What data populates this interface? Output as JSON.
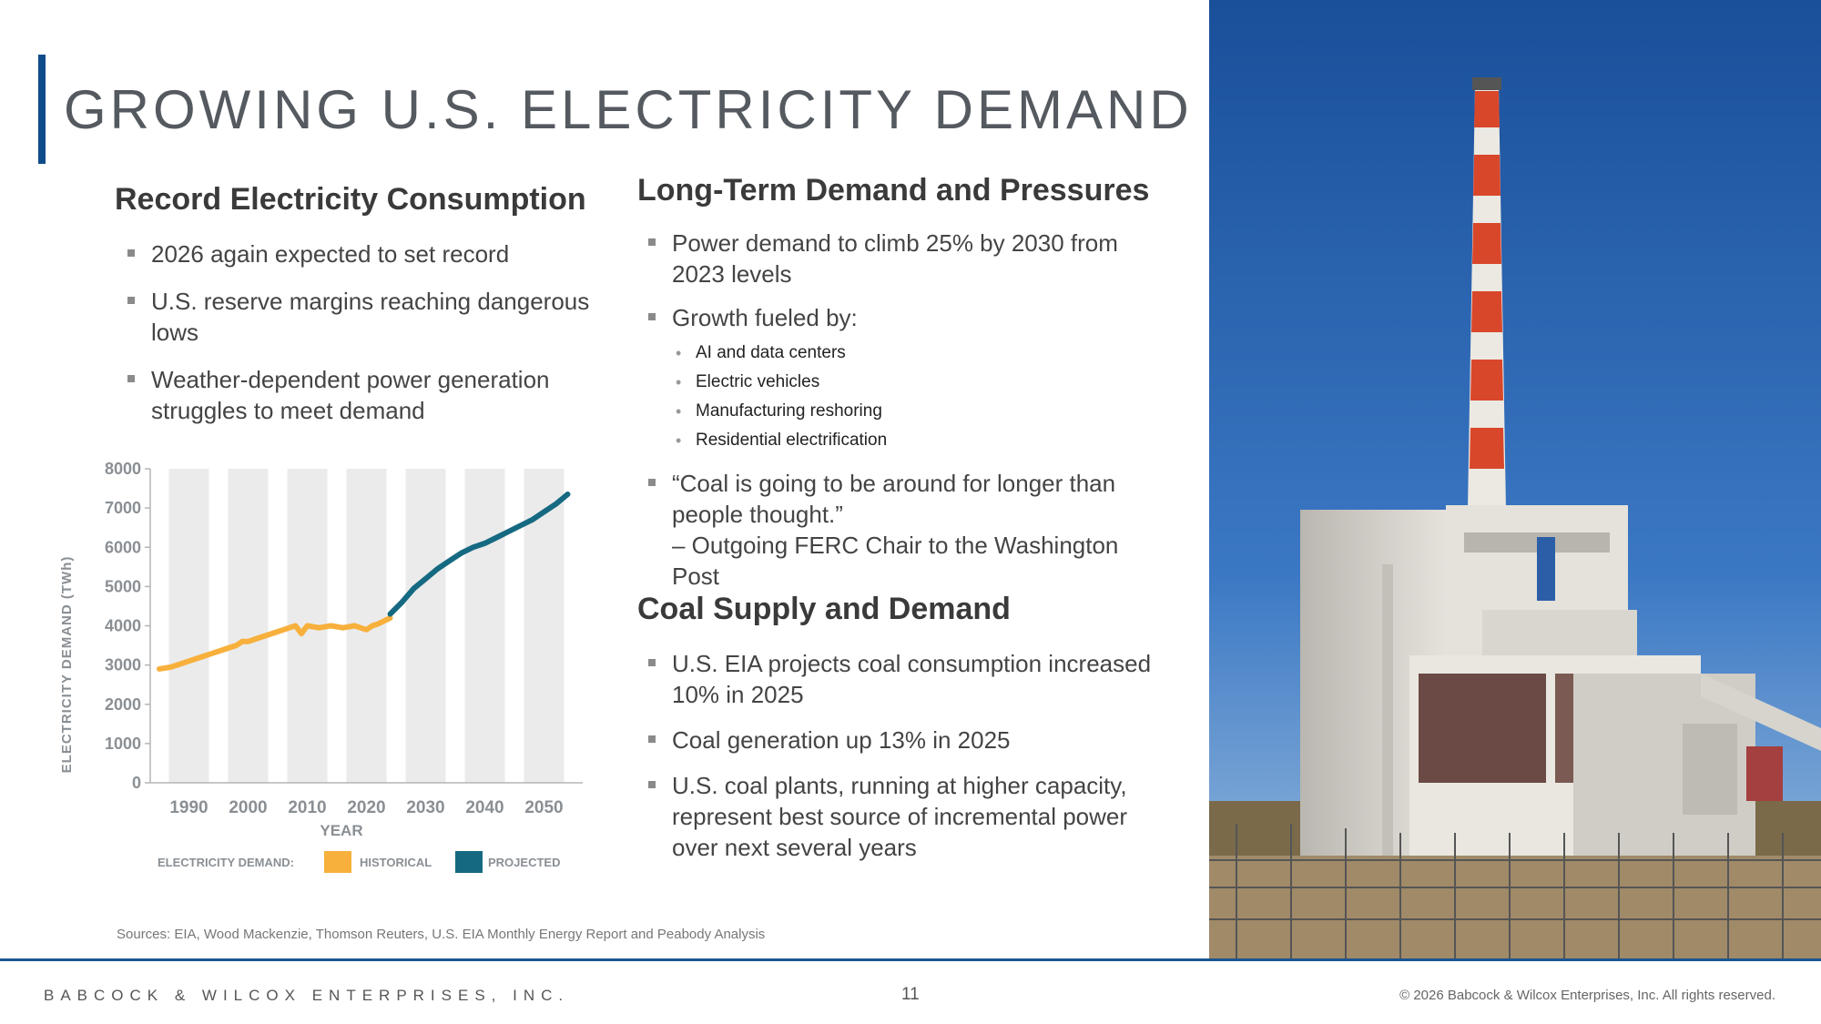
{
  "title": "GROWING U.S. ELECTRICITY DEMAND",
  "left": {
    "heading": "Record Electricity Consumption",
    "bullets": [
      "2026 again expected to set record",
      "U.S. reserve margins reaching dangerous lows",
      "Weather-dependent power generation struggles to meet demand"
    ]
  },
  "right": {
    "heading1": "Long-Term Demand and Pressures",
    "b1": "Power demand to climb 25% by 2030 from 2023 levels",
    "b2": "Growth fueled by:",
    "sub": [
      "AI and data centers",
      "Electric vehicles",
      "Manufacturing reshoring",
      "Residential electrification"
    ],
    "quote": "“Coal is going to be around for longer than people thought.”",
    "quote_attr": "– Outgoing FERC Chair to the Washington Post",
    "heading2": "Coal Supply and Demand",
    "c1": "U.S. EIA projects coal consumption increased 10% in 2025",
    "c2": "Coal generation up 13% in 2025",
    "c3": "U.S. coal plants, running at higher capacity, represent best source of incremental power over next several years"
  },
  "chart_data": {
    "type": "line",
    "ylabel": "ELECTRICITY DEMAND (TWh)",
    "xlabel": "YEAR",
    "ylim": [
      0,
      8000
    ],
    "xlim": [
      1985,
      2055
    ],
    "yticks": [
      "8000",
      "7000",
      "6000",
      "5000",
      "4000",
      "3000",
      "2000",
      "1000",
      "0"
    ],
    "xticks": [
      "1990",
      "2000",
      "2010",
      "2020",
      "2030",
      "2040",
      "2050"
    ],
    "legend_label": "ELECTRICITY DEMAND:",
    "series": [
      {
        "name": "HISTORICAL",
        "color": "#f7b03c",
        "x": [
          1985,
          1987,
          1988,
          1990,
          1992,
          1994,
          1996,
          1998,
          1999,
          2000,
          2002,
          2004,
          2006,
          2008,
          2009,
          2010,
          2012,
          2014,
          2016,
          2018,
          2019,
          2020,
          2021,
          2022,
          2024
        ],
        "y": [
          2900,
          2950,
          3000,
          3100,
          3200,
          3300,
          3400,
          3500,
          3600,
          3600,
          3700,
          3800,
          3900,
          4000,
          3800,
          4000,
          3950,
          4000,
          3950,
          4000,
          3950,
          3900,
          4000,
          4050,
          4200
        ]
      },
      {
        "name": "PROJECTED",
        "color": "#156a82",
        "x": [
          2024,
          2026,
          2028,
          2030,
          2032,
          2034,
          2036,
          2038,
          2040,
          2042,
          2044,
          2046,
          2048,
          2050,
          2052,
          2054
        ],
        "y": [
          4300,
          4600,
          4950,
          5200,
          5450,
          5650,
          5850,
          6000,
          6100,
          6250,
          6400,
          6550,
          6700,
          6900,
          7100,
          7350
        ]
      }
    ]
  },
  "sources": "Sources: EIA, Wood Mackenzie, Thomson Reuters, U.S. EIA Monthly Energy Report and Peabody Analysis",
  "footer": {
    "company": "BABCOCK & WILCOX ENTERPRISES, INC.",
    "page": "11",
    "copyright": "© 2026 Babcock & Wilcox Enterprises, Inc. All rights reserved."
  }
}
